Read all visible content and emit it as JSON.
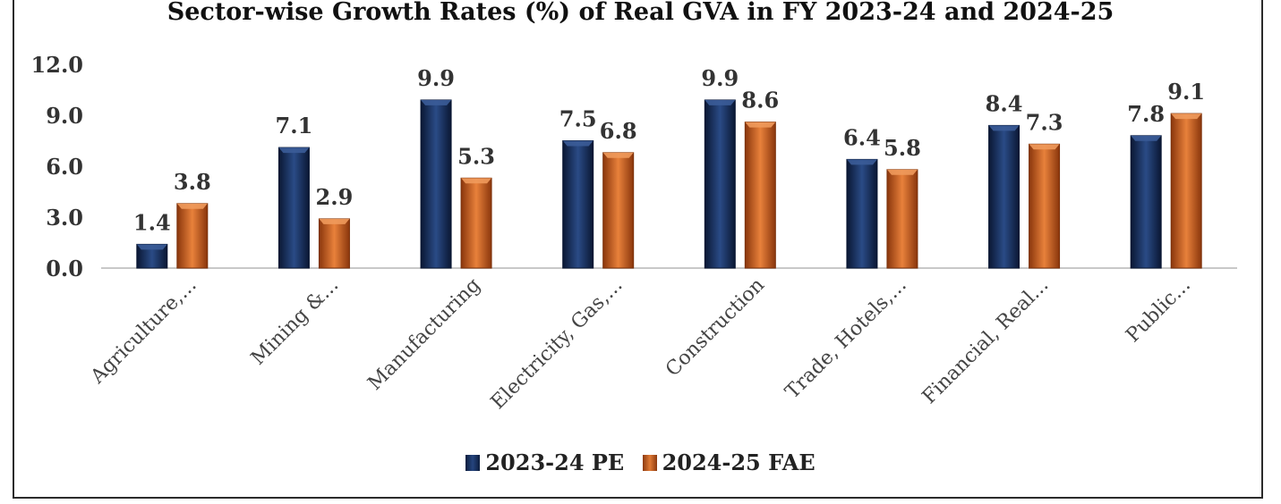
{
  "chart_data": {
    "type": "bar",
    "title": "Sector-wise Growth Rates (%) of Real GVA in FY 2023-24 and 2024-25",
    "xlabel": "",
    "ylabel": "",
    "ylim": [
      0,
      12
    ],
    "yticks": [
      "0.0",
      "3.0",
      "6.0",
      "9.0",
      "12.0"
    ],
    "categories": [
      "Agriculture,...",
      "Mining &...",
      "Manufacturing",
      "Electricity, Gas,...",
      "Construction",
      "Trade, Hotels,...",
      "Financial, Real...",
      "Public..."
    ],
    "series": [
      {
        "name": "2023-24 PE",
        "values": [
          1.4,
          7.1,
          9.9,
          7.5,
          9.9,
          6.4,
          8.4,
          7.8
        ],
        "labels": [
          "1.4",
          "7.1",
          "9.9",
          "7.5",
          "9.9",
          "6.4",
          "8.4",
          "7.8"
        ],
        "color": "#1a3263"
      },
      {
        "name": "2024-25 FAE",
        "values": [
          3.8,
          2.9,
          5.3,
          6.8,
          8.6,
          5.8,
          7.3,
          9.1
        ],
        "labels": [
          "3.8",
          "2.9",
          "5.3",
          "6.8",
          "8.6",
          "5.8",
          "7.3",
          "9.1"
        ],
        "color": "#c8602a"
      }
    ],
    "legend_position": "bottom",
    "grid": false
  }
}
